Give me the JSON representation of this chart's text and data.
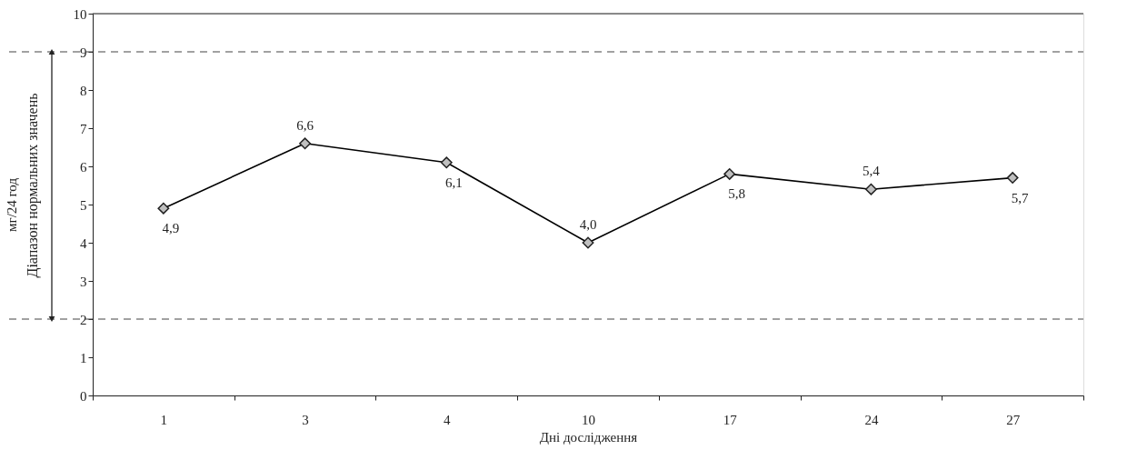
{
  "chart_data": {
    "type": "line",
    "xlabel": "Дні дослідження",
    "ylabel": "мг/24 год",
    "categories": [
      "1",
      "3",
      "4",
      "10",
      "17",
      "24",
      "27"
    ],
    "series": [
      {
        "color": "#000000",
        "values": [
          4.9,
          6.6,
          6.1,
          4.0,
          5.8,
          5.4,
          5.7
        ],
        "value_labels": [
          "4,9",
          "6,6",
          "6,1",
          "4,0",
          "5,8",
          "5,4",
          "5,7"
        ]
      }
    ],
    "marker": "diamond",
    "line_style": "solid",
    "ylim": [
      0,
      10
    ],
    "yticks": [
      0,
      1,
      2,
      3,
      4,
      5,
      6,
      7,
      8,
      9,
      10
    ],
    "ref_lines": [
      {
        "axis": "y",
        "value": 2,
        "color": "#444444",
        "line_style": "dashed"
      },
      {
        "axis": "y",
        "value": 9,
        "color": "#444444",
        "line_style": "dashed"
      }
    ],
    "annotations": [
      "Діапазон нормальних значень"
    ],
    "grid": false
  }
}
